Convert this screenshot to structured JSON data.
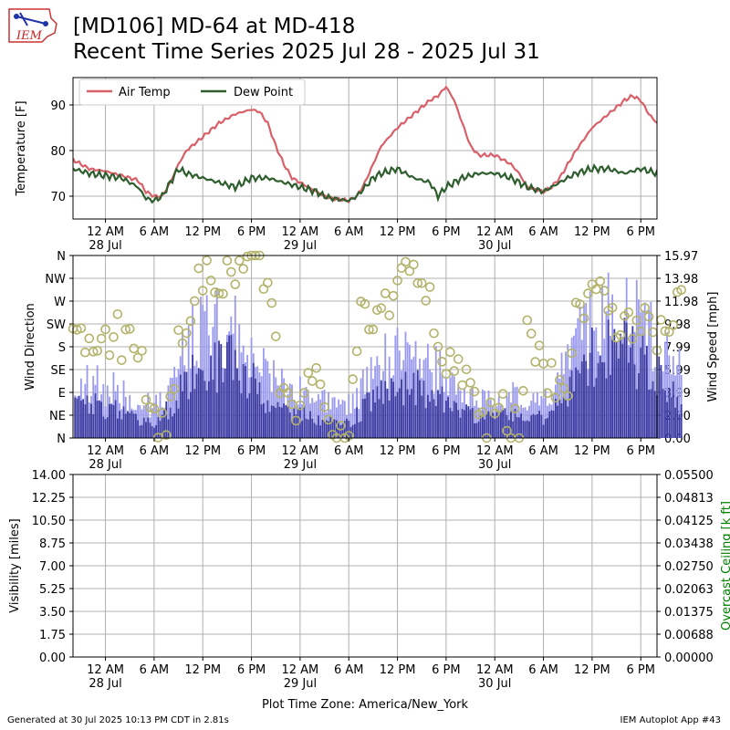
{
  "header": {
    "title_line1": "[MD106] MD-64 at MD-418",
    "title_line2": "Recent Time Series 2025 Jul 28 - 2025 Jul 31",
    "logo_text": "IEM"
  },
  "footer": {
    "generated": "Generated at 30 Jul 2025 10:13 PM CDT in 2.81s",
    "app": "IEM Autoplot App #43",
    "timezone_label": "Plot Time Zone: America/New_York"
  },
  "colors": {
    "air_temp": "#d95f69",
    "dew_point": "#2e5e2e",
    "wind_dir_marker": "#b3b36b",
    "wind_speed_bar": "#3a3aa0",
    "wind_gust_bar": "#9a9aef",
    "ceiling_label": "#008000",
    "grid": "#b0b0b0"
  },
  "x_axis": {
    "start_hour": -4,
    "end_hour": 68,
    "ticks": [
      {
        "h": 0,
        "label": "12 AM",
        "date": "28 Jul"
      },
      {
        "h": 6,
        "label": "6 AM",
        "date": ""
      },
      {
        "h": 12,
        "label": "12 PM",
        "date": ""
      },
      {
        "h": 18,
        "label": "6 PM",
        "date": ""
      },
      {
        "h": 24,
        "label": "12 AM",
        "date": "29 Jul"
      },
      {
        "h": 30,
        "label": "6 AM",
        "date": ""
      },
      {
        "h": 36,
        "label": "12 PM",
        "date": ""
      },
      {
        "h": 42,
        "label": "6 PM",
        "date": ""
      },
      {
        "h": 48,
        "label": "12 AM",
        "date": "30 Jul"
      },
      {
        "h": 54,
        "label": "6 AM",
        "date": ""
      },
      {
        "h": 60,
        "label": "12 PM",
        "date": ""
      },
      {
        "h": 66,
        "label": "6 PM",
        "date": ""
      }
    ]
  },
  "chart_data": [
    {
      "type": "line",
      "name": "temperature",
      "ylabel": "Temperature [F]",
      "ylim": [
        65,
        96
      ],
      "yticks": [
        70,
        80,
        90
      ],
      "grid": true,
      "legend_placement": "top-left",
      "series": [
        {
          "name": "Air Temp",
          "points": [
            [
              -4,
              78
            ],
            [
              -3,
              77
            ],
            [
              -2,
              76
            ],
            [
              0,
              75.5
            ],
            [
              2,
              74.5
            ],
            [
              4,
              73.5
            ],
            [
              5,
              71
            ],
            [
              6,
              70
            ],
            [
              7,
              70
            ],
            [
              8,
              73
            ],
            [
              9,
              77
            ],
            [
              10,
              80
            ],
            [
              12,
              83
            ],
            [
              14,
              86
            ],
            [
              16,
              88
            ],
            [
              18,
              89
            ],
            [
              19,
              88.5
            ],
            [
              20,
              86
            ],
            [
              21,
              81
            ],
            [
              22,
              77
            ],
            [
              23,
              74
            ],
            [
              24,
              73
            ],
            [
              26,
              71
            ],
            [
              27,
              70
            ],
            [
              28,
              69.5
            ],
            [
              30,
              69
            ],
            [
              31,
              70
            ],
            [
              32,
              73
            ],
            [
              33,
              77
            ],
            [
              34,
              81
            ],
            [
              36,
              85
            ],
            [
              38,
              88
            ],
            [
              40,
              91
            ],
            [
              41,
              92
            ],
            [
              42,
              94
            ],
            [
              43,
              91
            ],
            [
              44,
              86
            ],
            [
              45,
              81
            ],
            [
              46,
              79
            ],
            [
              48,
              79
            ],
            [
              50,
              77
            ],
            [
              51,
              75
            ],
            [
              52,
              72
            ],
            [
              54,
              71
            ],
            [
              55,
              72
            ],
            [
              56,
              74
            ],
            [
              57,
              77
            ],
            [
              58,
              80
            ],
            [
              60,
              85
            ],
            [
              62,
              88
            ],
            [
              64,
              91
            ],
            [
              65,
              92
            ],
            [
              66,
              91
            ],
            [
              67,
              88
            ],
            [
              68,
              86
            ],
            [
              69,
              84
            ],
            [
              70,
              81
            ],
            [
              71,
              78.5
            ]
          ]
        },
        {
          "name": "Dew Point",
          "points": [
            [
              -4,
              76
            ],
            [
              -3,
              75.5
            ],
            [
              -2,
              75
            ],
            [
              0,
              74.5
            ],
            [
              2,
              74
            ],
            [
              4,
              72
            ],
            [
              5,
              69.5
            ],
            [
              6,
              69
            ],
            [
              7,
              70
            ],
            [
              8,
              73
            ],
            [
              9,
              76
            ],
            [
              10,
              75
            ],
            [
              12,
              74
            ],
            [
              14,
              73
            ],
            [
              16,
              72
            ],
            [
              18,
              74
            ],
            [
              20,
              74
            ],
            [
              22,
              73
            ],
            [
              24,
              72
            ],
            [
              26,
              71
            ],
            [
              27,
              70
            ],
            [
              28,
              69.5
            ],
            [
              30,
              69
            ],
            [
              31,
              70
            ],
            [
              32,
              72
            ],
            [
              33,
              74
            ],
            [
              34,
              75
            ],
            [
              36,
              76
            ],
            [
              38,
              74
            ],
            [
              40,
              73
            ],
            [
              41,
              70
            ],
            [
              42,
              72
            ],
            [
              43,
              73
            ],
            [
              44,
              74
            ],
            [
              46,
              75
            ],
            [
              48,
              75
            ],
            [
              50,
              74
            ],
            [
              52,
              72
            ],
            [
              54,
              71
            ],
            [
              55,
              72
            ],
            [
              56,
              73
            ],
            [
              57,
              74
            ],
            [
              58,
              75
            ],
            [
              60,
              76
            ],
            [
              62,
              76
            ],
            [
              64,
              75
            ],
            [
              66,
              76
            ],
            [
              68,
              75
            ],
            [
              69,
              74
            ],
            [
              70,
              74.5
            ],
            [
              71,
              75.5
            ]
          ]
        }
      ]
    },
    {
      "type": "bar",
      "name": "wind",
      "ylabel_left": "Wind Direction",
      "ylabel_right": "Wind Speed [mph]",
      "direction_ticks": [
        "N",
        "NE",
        "E",
        "SE",
        "S",
        "SW",
        "W",
        "NW",
        "N"
      ],
      "speed_ticks": [
        "0.00",
        "2.00",
        "3.99",
        "5.99",
        "7.99",
        "9.98",
        "11.98",
        "13.98",
        "15.97"
      ],
      "ylim_speed": [
        0,
        15.97
      ],
      "grid": true,
      "speed_profile": [
        [
          -4,
          3.5
        ],
        [
          0,
          3.0
        ],
        [
          4,
          2.0
        ],
        [
          6,
          1.5
        ],
        [
          8,
          3.0
        ],
        [
          10,
          5.5
        ],
        [
          12,
          6.5
        ],
        [
          14,
          7.0
        ],
        [
          16,
          7.5
        ],
        [
          18,
          5.5
        ],
        [
          20,
          3.5
        ],
        [
          22,
          3.0
        ],
        [
          24,
          2.5
        ],
        [
          26,
          2.0
        ],
        [
          28,
          1.5
        ],
        [
          30,
          1.5
        ],
        [
          32,
          3.0
        ],
        [
          34,
          4.5
        ],
        [
          36,
          5.0
        ],
        [
          38,
          5.0
        ],
        [
          40,
          4.5
        ],
        [
          42,
          3.5
        ],
        [
          44,
          2.5
        ],
        [
          46,
          2.0
        ],
        [
          48,
          2.0
        ],
        [
          50,
          2.5
        ],
        [
          52,
          2.0
        ],
        [
          54,
          2.0
        ],
        [
          56,
          3.5
        ],
        [
          58,
          6.0
        ],
        [
          60,
          8.0
        ],
        [
          62,
          9.0
        ],
        [
          64,
          8.5
        ],
        [
          66,
          7.5
        ],
        [
          68,
          6.0
        ],
        [
          71,
          3.0
        ]
      ],
      "gust_profile": [
        [
          -4,
          5.5
        ],
        [
          0,
          5.0
        ],
        [
          4,
          3.5
        ],
        [
          6,
          3.0
        ],
        [
          8,
          5.0
        ],
        [
          10,
          8.5
        ],
        [
          12,
          10.0
        ],
        [
          14,
          10.5
        ],
        [
          16,
          10.0
        ],
        [
          18,
          8.5
        ],
        [
          20,
          6.0
        ],
        [
          22,
          5.0
        ],
        [
          24,
          4.5
        ],
        [
          26,
          3.5
        ],
        [
          28,
          3.0
        ],
        [
          30,
          3.0
        ],
        [
          32,
          5.0
        ],
        [
          34,
          7.0
        ],
        [
          36,
          7.5
        ],
        [
          38,
          7.5
        ],
        [
          40,
          7.0
        ],
        [
          42,
          5.5
        ],
        [
          44,
          4.0
        ],
        [
          46,
          3.5
        ],
        [
          48,
          3.5
        ],
        [
          50,
          4.0
        ],
        [
          52,
          3.5
        ],
        [
          54,
          3.5
        ],
        [
          56,
          5.5
        ],
        [
          58,
          9.0
        ],
        [
          60,
          11.0
        ],
        [
          62,
          12.5
        ],
        [
          64,
          11.5
        ],
        [
          66,
          11.0
        ],
        [
          68,
          9.0
        ],
        [
          71,
          6.0
        ]
      ],
      "direction_points": [
        [
          -4,
          250
        ],
        [
          -3,
          220
        ],
        [
          -2,
          200
        ],
        [
          -1,
          215
        ],
        [
          0,
          195
        ],
        [
          1,
          210
        ],
        [
          2,
          190
        ],
        [
          3,
          180
        ],
        [
          4,
          170
        ],
        [
          5,
          120
        ],
        [
          6,
          20
        ],
        [
          7,
          10
        ],
        [
          8,
          40
        ],
        [
          9,
          200
        ],
        [
          10,
          230
        ],
        [
          11,
          280
        ],
        [
          12,
          300
        ],
        [
          13,
          320
        ],
        [
          14,
          290
        ],
        [
          15,
          330
        ],
        [
          16,
          310
        ],
        [
          17,
          335
        ],
        [
          18,
          340
        ],
        [
          19,
          320
        ],
        [
          20,
          300
        ],
        [
          21,
          180
        ],
        [
          22,
          60
        ],
        [
          23,
          30
        ],
        [
          24,
          90
        ],
        [
          25,
          150
        ],
        [
          26,
          100
        ],
        [
          27,
          40
        ],
        [
          28,
          10
        ],
        [
          29,
          0
        ],
        [
          30,
          20
        ],
        [
          31,
          180
        ],
        [
          32,
          270
        ],
        [
          33,
          240
        ],
        [
          34,
          230
        ],
        [
          35,
          280
        ],
        [
          36,
          310
        ],
        [
          37,
          330
        ],
        [
          38,
          345
        ],
        [
          39,
          320
        ],
        [
          40,
          300
        ],
        [
          41,
          200
        ],
        [
          42,
          130
        ],
        [
          43,
          170
        ],
        [
          44,
          110
        ],
        [
          45,
          80
        ],
        [
          46,
          20
        ],
        [
          47,
          40
        ],
        [
          48,
          60
        ],
        [
          49,
          80
        ],
        [
          50,
          10
        ],
        [
          51,
          30
        ],
        [
          52,
          200
        ],
        [
          53,
          170
        ],
        [
          54,
          140
        ],
        [
          55,
          120
        ],
        [
          56,
          100
        ],
        [
          57,
          60
        ],
        [
          58,
          230
        ],
        [
          59,
          240
        ],
        [
          60,
          260
        ],
        [
          61,
          270
        ],
        [
          62,
          250
        ],
        [
          63,
          220
        ],
        [
          64,
          210
        ],
        [
          65,
          200
        ],
        [
          66,
          240
        ],
        [
          67,
          220
        ],
        [
          68,
          210
        ],
        [
          69,
          190
        ],
        [
          70,
          180
        ],
        [
          71,
          330
        ]
      ]
    },
    {
      "type": "line",
      "name": "visibility",
      "ylabel_left": "Visibility [miles]",
      "ylabel_right": "Overcast Ceiling [k ft]",
      "yticks_left": [
        "0.00",
        "1.75",
        "3.50",
        "5.25",
        "7.00",
        "8.75",
        "10.50",
        "12.25",
        "14.00"
      ],
      "yticks_right": [
        "0.00000",
        "0.00688",
        "0.01375",
        "0.02063",
        "0.02750",
        "0.03438",
        "0.04125",
        "0.04813",
        "0.05500"
      ],
      "ylim_left": [
        0,
        14
      ],
      "ylim_right": [
        0,
        0.055
      ],
      "grid": true,
      "series": []
    }
  ]
}
